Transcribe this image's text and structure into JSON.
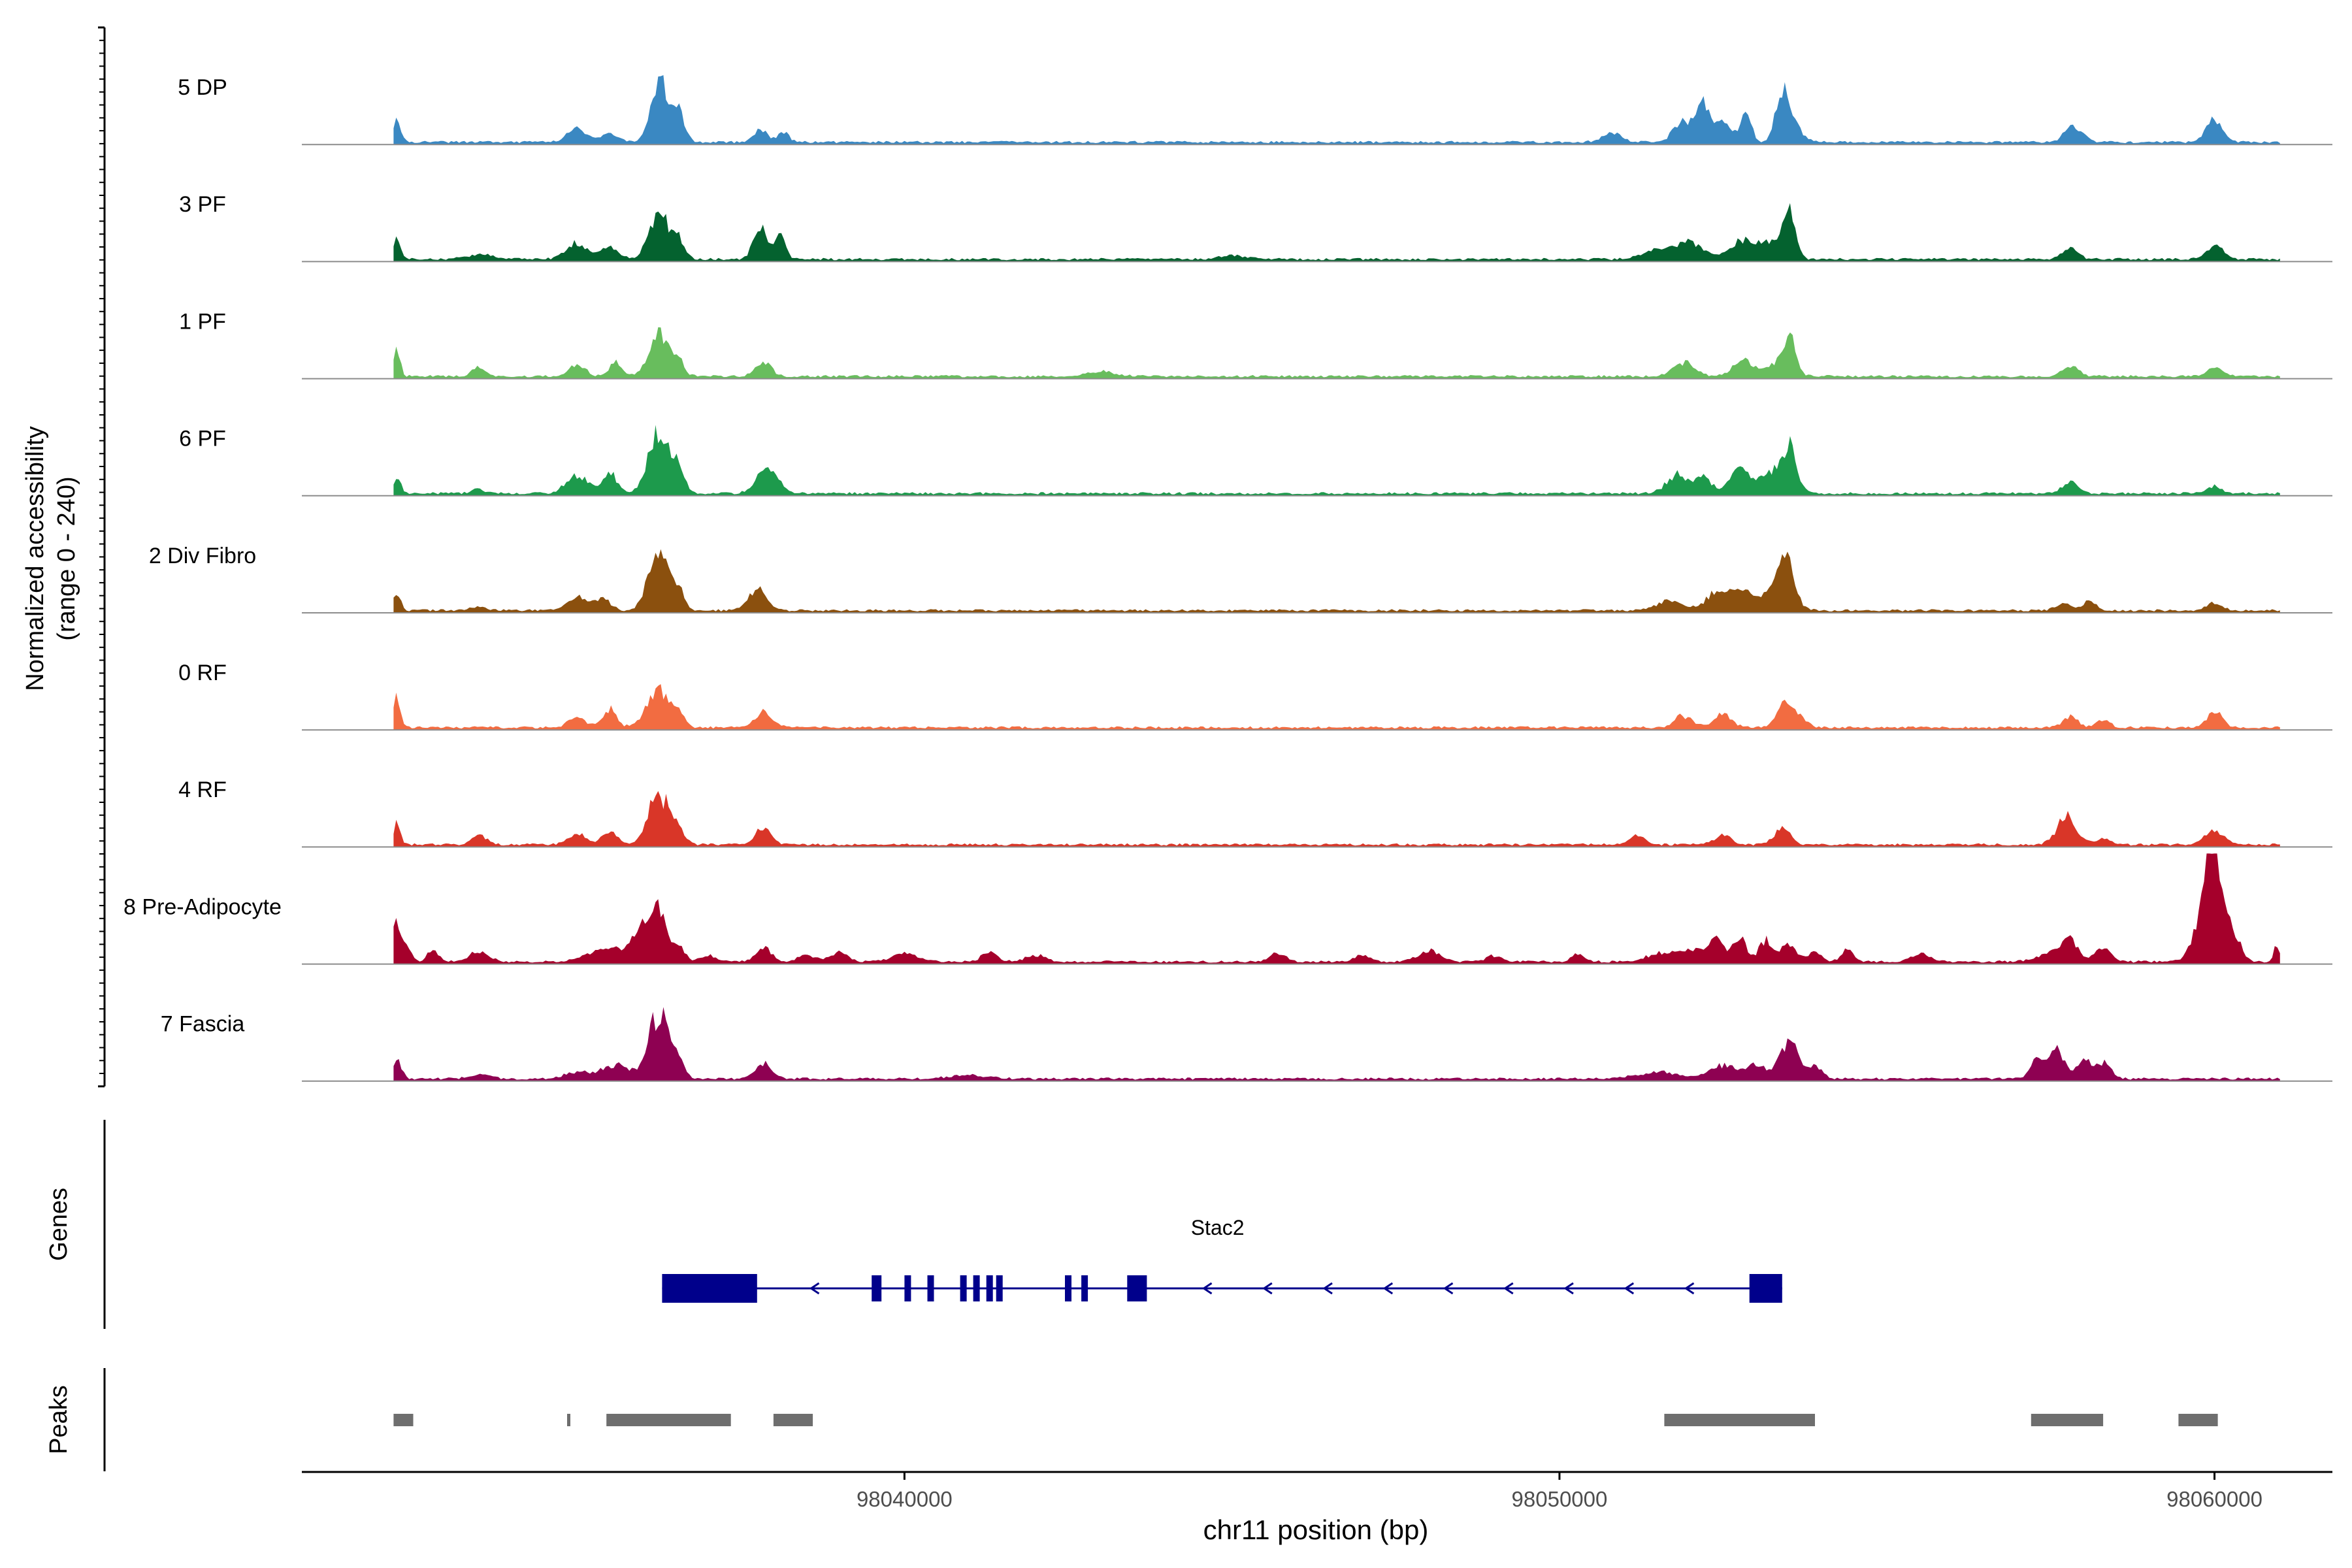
{
  "chart_data": {
    "type": "area",
    "title": "",
    "ylabel_line1": "Normalized accessibility",
    "ylabel_line2": "(range 0 - 240)",
    "ylim": [
      0,
      240
    ],
    "xlabel": "chr11 position (bp)",
    "xlim": [
      98030800,
      98061800
    ],
    "x_ticks": [
      98040000,
      98050000,
      98060000
    ],
    "x_tick_labels": [
      "98040000",
      "98050000",
      "98060000"
    ],
    "data_extent": [
      98032200,
      98061000
    ],
    "bin_bp": 40,
    "series": [
      {
        "name": "5 DP",
        "color": "#3a88c2",
        "peaks": [
          [
            98032250,
            45,
            60
          ],
          [
            98035000,
            30,
            150
          ],
          [
            98035500,
            20,
            120
          ],
          [
            98036250,
            140,
            120
          ],
          [
            98036550,
            70,
            90
          ],
          [
            98037800,
            25,
            100
          ],
          [
            98038150,
            20,
            90
          ],
          [
            98050800,
            20,
            150
          ],
          [
            98051900,
            50,
            150
          ],
          [
            98052200,
            80,
            90
          ],
          [
            98052500,
            50,
            120
          ],
          [
            98052850,
            60,
            80
          ],
          [
            98053400,
            110,
            100
          ],
          [
            98053600,
            30,
            120
          ],
          [
            98057800,
            35,
            100
          ],
          [
            98058000,
            15,
            90
          ],
          [
            98060000,
            50,
            120
          ]
        ]
      },
      {
        "name": "3 PF",
        "color": "#04622f",
        "peaks": [
          [
            98032250,
            40,
            60
          ],
          [
            98033500,
            10,
            200
          ],
          [
            98035000,
            35,
            160
          ],
          [
            98035500,
            30,
            120
          ],
          [
            98036250,
            100,
            150
          ],
          [
            98036550,
            40,
            90
          ],
          [
            98037800,
            70,
            100
          ],
          [
            98038100,
            50,
            80
          ],
          [
            98045000,
            8,
            200
          ],
          [
            98051500,
            25,
            200
          ],
          [
            98052000,
            35,
            200
          ],
          [
            98052800,
            40,
            200
          ],
          [
            98053500,
            100,
            100
          ],
          [
            98053200,
            30,
            150
          ],
          [
            98057800,
            25,
            110
          ],
          [
            98060000,
            30,
            120
          ]
        ]
      },
      {
        "name": "1 PF",
        "color": "#68bd5d",
        "peaks": [
          [
            98032250,
            60,
            50
          ],
          [
            98033500,
            20,
            100
          ],
          [
            98035000,
            25,
            120
          ],
          [
            98035600,
            30,
            100
          ],
          [
            98036250,
            90,
            150
          ],
          [
            98036550,
            30,
            90
          ],
          [
            98037850,
            30,
            120
          ],
          [
            98043000,
            10,
            200
          ],
          [
            98051900,
            30,
            160
          ],
          [
            98052800,
            35,
            150
          ],
          [
            98053500,
            90,
            100
          ],
          [
            98053200,
            20,
            150
          ],
          [
            98057800,
            20,
            120
          ],
          [
            98060000,
            20,
            110
          ]
        ]
      },
      {
        "name": "6 PF",
        "color": "#1d9a4c",
        "peaks": [
          [
            98032250,
            35,
            60
          ],
          [
            98033500,
            10,
            100
          ],
          [
            98035000,
            40,
            160
          ],
          [
            98035500,
            45,
            110
          ],
          [
            98036250,
            130,
            160
          ],
          [
            98036550,
            50,
            90
          ],
          [
            98037850,
            45,
            140
          ],
          [
            98038050,
            25,
            100
          ],
          [
            98051800,
            40,
            160
          ],
          [
            98052200,
            35,
            120
          ],
          [
            98052750,
            50,
            150
          ],
          [
            98053500,
            100,
            120
          ],
          [
            98053200,
            40,
            150
          ],
          [
            98057800,
            25,
            120
          ],
          [
            98060000,
            15,
            110
          ]
        ]
      },
      {
        "name": "2 Div Fibro",
        "color": "#8b500e",
        "peaks": [
          [
            98032250,
            40,
            60
          ],
          [
            98033500,
            10,
            100
          ],
          [
            98035000,
            30,
            160
          ],
          [
            98035400,
            25,
            110
          ],
          [
            98036250,
            140,
            150
          ],
          [
            98036550,
            40,
            90
          ],
          [
            98037800,
            45,
            110
          ],
          [
            98037600,
            15,
            90
          ],
          [
            98051700,
            20,
            200
          ],
          [
            98052400,
            40,
            160
          ],
          [
            98052800,
            50,
            150
          ],
          [
            98053450,
            120,
            130
          ],
          [
            98053200,
            30,
            150
          ],
          [
            98057700,
            15,
            120
          ],
          [
            98058100,
            20,
            100
          ],
          [
            98060000,
            15,
            120
          ]
        ]
      },
      {
        "name": "0 RF",
        "color": "#f26c41",
        "peaks": [
          [
            98032250,
            65,
            50
          ],
          [
            98035000,
            20,
            140
          ],
          [
            98035500,
            40,
            100
          ],
          [
            98036250,
            80,
            180
          ],
          [
            98036550,
            20,
            90
          ],
          [
            98037850,
            35,
            130
          ],
          [
            98051900,
            25,
            140
          ],
          [
            98052500,
            30,
            130
          ],
          [
            98053450,
            60,
            120
          ],
          [
            98053700,
            20,
            100
          ],
          [
            98057800,
            25,
            110
          ],
          [
            98058300,
            15,
            100
          ],
          [
            98060000,
            35,
            120
          ]
        ]
      },
      {
        "name": "4 RF",
        "color": "#d93628",
        "peaks": [
          [
            98032250,
            50,
            50
          ],
          [
            98033500,
            20,
            110
          ],
          [
            98035000,
            25,
            130
          ],
          [
            98035500,
            30,
            110
          ],
          [
            98036250,
            110,
            160
          ],
          [
            98036550,
            30,
            90
          ],
          [
            98037850,
            40,
            110
          ],
          [
            98051200,
            20,
            110
          ],
          [
            98052500,
            20,
            130
          ],
          [
            98053400,
            35,
            120
          ],
          [
            98057750,
            60,
            150
          ],
          [
            98058300,
            15,
            100
          ],
          [
            98060000,
            30,
            150
          ]
        ]
      },
      {
        "name": "8 Pre-Adipocyte",
        "color": "#a5002b",
        "peaks": [
          [
            98032250,
            90,
            60
          ],
          [
            98032400,
            40,
            60
          ],
          [
            98032800,
            25,
            80
          ],
          [
            98033500,
            20,
            150
          ],
          [
            98035500,
            30,
            300
          ],
          [
            98036000,
            60,
            160
          ],
          [
            98036250,
            100,
            120
          ],
          [
            98036550,
            35,
            90
          ],
          [
            98037000,
            15,
            100
          ],
          [
            98037850,
            30,
            120
          ],
          [
            98038500,
            15,
            120
          ],
          [
            98039000,
            20,
            140
          ],
          [
            98040000,
            18,
            200
          ],
          [
            98041300,
            20,
            120
          ],
          [
            98042000,
            15,
            140
          ],
          [
            98045700,
            20,
            120
          ],
          [
            98047000,
            15,
            120
          ],
          [
            98048000,
            25,
            160
          ],
          [
            98049000,
            12,
            120
          ],
          [
            98050300,
            18,
            100
          ],
          [
            98051500,
            15,
            200
          ],
          [
            98052000,
            25,
            240
          ],
          [
            98052400,
            40,
            120
          ],
          [
            98052750,
            50,
            100
          ],
          [
            98053150,
            45,
            100
          ],
          [
            98053500,
            35,
            120
          ],
          [
            98053900,
            20,
            100
          ],
          [
            98054400,
            25,
            100
          ],
          [
            98055500,
            15,
            150
          ],
          [
            98057500,
            20,
            200
          ],
          [
            98057800,
            45,
            120
          ],
          [
            98058300,
            35,
            120
          ],
          [
            98059850,
            110,
            150
          ],
          [
            98060000,
            200,
            120
          ],
          [
            98060300,
            60,
            100
          ],
          [
            98060950,
            35,
            40
          ]
        ]
      },
      {
        "name": "7 Fascia",
        "color": "#8e0152",
        "peaks": [
          [
            98032250,
            40,
            70
          ],
          [
            98033500,
            10,
            150
          ],
          [
            98035000,
            15,
            200
          ],
          [
            98035600,
            30,
            200
          ],
          [
            98036250,
            140,
            160
          ],
          [
            98036550,
            30,
            90
          ],
          [
            98037850,
            35,
            120
          ],
          [
            98041000,
            8,
            300
          ],
          [
            98051500,
            15,
            300
          ],
          [
            98052500,
            30,
            200
          ],
          [
            98053000,
            30,
            150
          ],
          [
            98053500,
            80,
            140
          ],
          [
            98053900,
            25,
            120
          ],
          [
            98057300,
            40,
            110
          ],
          [
            98057600,
            60,
            110
          ],
          [
            98058000,
            40,
            110
          ],
          [
            98058300,
            35,
            110
          ]
        ]
      }
    ],
    "genes": {
      "track_label": "Genes",
      "strand": "-",
      "items": [
        {
          "name": "Stac2",
          "start": 98036300,
          "end": 98053400,
          "exons": [
            [
              98036300,
              98037750,
              "utr"
            ],
            [
              98039500,
              98039650,
              "cds"
            ],
            [
              98040000,
              98040050,
              "cds"
            ],
            [
              98040350,
              98040450,
              "cds"
            ],
            [
              98040850,
              98040900,
              "cds"
            ],
            [
              98041050,
              98041100,
              "cds"
            ],
            [
              98041250,
              98041300,
              "cds"
            ],
            [
              98041400,
              98041500,
              "cds"
            ],
            [
              98042450,
              98042550,
              "cds"
            ],
            [
              98042700,
              98042800,
              "cds"
            ],
            [
              98043400,
              98043700,
              "cds"
            ],
            [
              98052900,
              98053400,
              "utr"
            ]
          ]
        }
      ]
    },
    "peaks": {
      "track_label": "Peaks",
      "regions": [
        [
          98032200,
          98032500
        ],
        [
          98034850,
          98034900
        ],
        [
          98035450,
          98037350
        ],
        [
          98038000,
          98038600
        ],
        [
          98051600,
          98053900
        ],
        [
          98057200,
          98058300
        ],
        [
          98059450,
          98060050
        ]
      ]
    }
  }
}
